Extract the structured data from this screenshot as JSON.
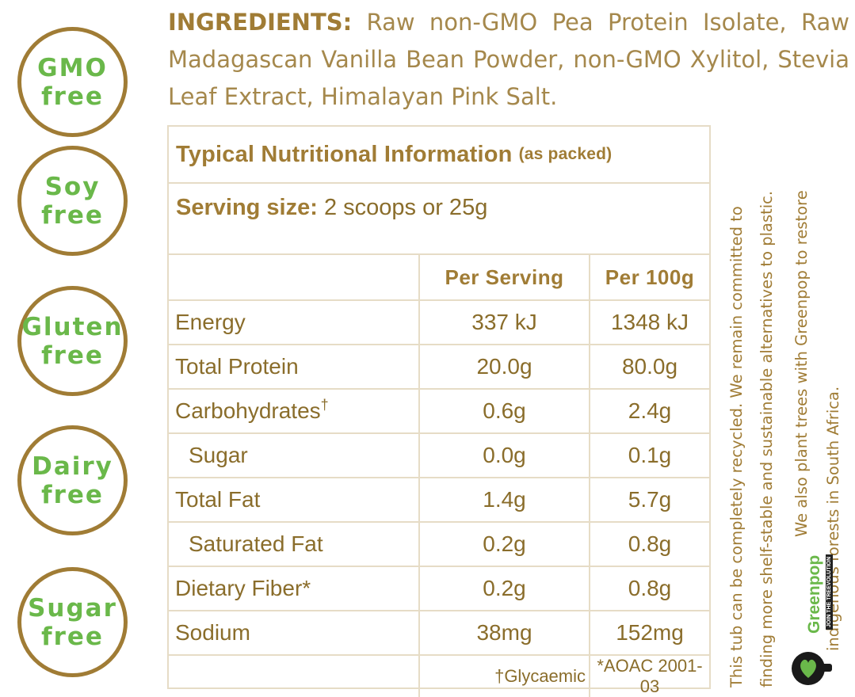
{
  "badges": [
    {
      "line1": "GMO",
      "line2": "free"
    },
    {
      "line1": "Soy",
      "line2": "free"
    },
    {
      "line1": "Gluten",
      "line2": "free"
    },
    {
      "line1": "Dairy",
      "line2": "free"
    },
    {
      "line1": "Sugar",
      "line2": "free"
    }
  ],
  "ingredients": {
    "lead": "INGREDIENTS:",
    "text": " Raw non-GMO Pea Protein Isolate, Raw Madagascan Vanilla Bean Powder, non-GMO Xylitol, Stevia Leaf Extract, Himalayan Pink Salt."
  },
  "nutrition": {
    "title": "Typical Nutritional Information",
    "title_note": "(as packed)",
    "serving_label": "Serving size:",
    "serving_value": " 2 scoops or 25g",
    "col_per_serving": "Per Serving",
    "col_per_100g": "Per 100g",
    "rows": [
      {
        "name": "Energy",
        "per_serving": "337 kJ",
        "per_100g": "1348 kJ"
      },
      {
        "name": "Total Protein",
        "per_serving": "20.0g",
        "per_100g": "80.0g"
      },
      {
        "name": "Carbohydrates",
        "mark": "†",
        "per_serving": "0.6g",
        "per_100g": "2.4g"
      },
      {
        "name": "Sugar",
        "per_serving": "0.0g",
        "per_100g": "0.1g"
      },
      {
        "name": "Total Fat",
        "per_serving": "1.4g",
        "per_100g": "5.7g"
      },
      {
        "name": "Saturated Fat",
        "per_serving": "0.2g",
        "per_100g": "0.8g"
      },
      {
        "name": "Dietary Fiber*",
        "per_serving": "0.2g",
        "per_100g": "0.8g"
      },
      {
        "name": "Sodium",
        "per_serving": "38mg",
        "per_100g": "152mg"
      }
    ],
    "footnote_1": "†Glycaemic",
    "footnote_2": "*AOAC 2001-03"
  },
  "side_text": {
    "line1": "This tub can be completely recycled. We remain committed to",
    "line2": "finding more shelf-stable and sustainable alternatives to plastic.",
    "line3": "We also plant trees with Greenpop to restore",
    "line4": "indigenous forests in South Africa."
  },
  "logo": {
    "word": "Greenpop",
    "tagline": "JOIN THE TREEVOLUTION"
  },
  "colors": {
    "gold": "#a07c35",
    "green": "#6ab84a",
    "border": "#e6dcc6"
  }
}
